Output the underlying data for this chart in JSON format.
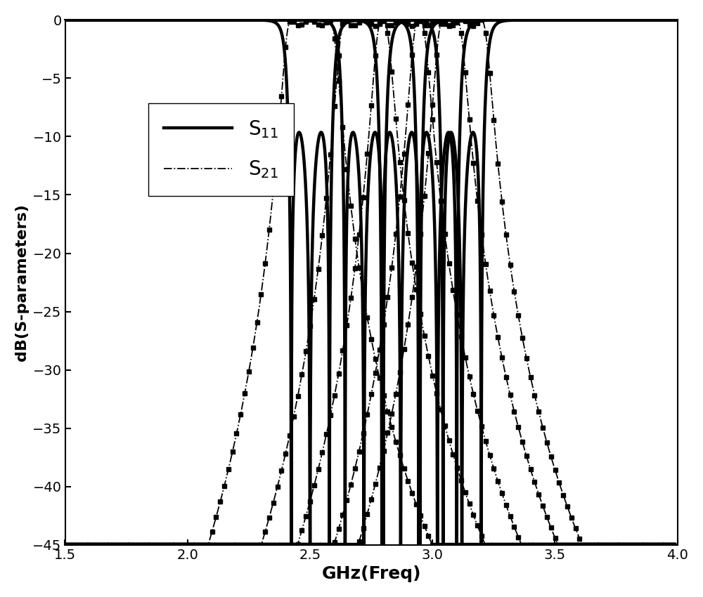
{
  "xlabel": "GHz(Freq)",
  "ylabel": "dB(S-parameters)",
  "xlim": [
    1.5,
    4.0
  ],
  "ylim": [
    -45,
    0
  ],
  "yticks": [
    0,
    -5,
    -10,
    -15,
    -20,
    -25,
    -30,
    -35,
    -40,
    -45
  ],
  "xticks": [
    1.5,
    2.0,
    2.5,
    3.0,
    3.5,
    4.0
  ],
  "centers": [
    2.5,
    2.72,
    2.87,
    3.02,
    3.12
  ],
  "bandwidth": 0.18,
  "filter_order": 3,
  "ripple_db": 0.5,
  "xlabel_fontsize": 18,
  "ylabel_fontsize": 16,
  "tick_labelsize": 14,
  "legend_s11": "S$_{11}$",
  "legend_s21": "S$_{21}$"
}
